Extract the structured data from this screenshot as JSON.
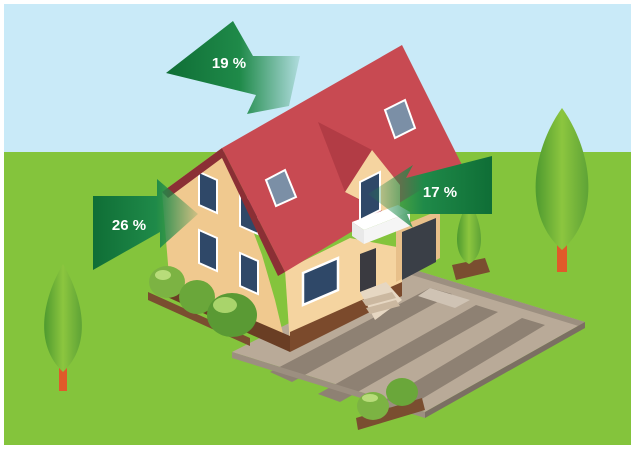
{
  "heat_loss": {
    "roof": "19 %",
    "wall": "26 %",
    "window": "17 %"
  },
  "colors": {
    "sky": "#c9eaf8",
    "grass": "#84c43c",
    "roof": "#c84a52",
    "wall": "#f2cd96",
    "arrow_dark": "#137a3b",
    "paving": "#b9aa98"
  }
}
